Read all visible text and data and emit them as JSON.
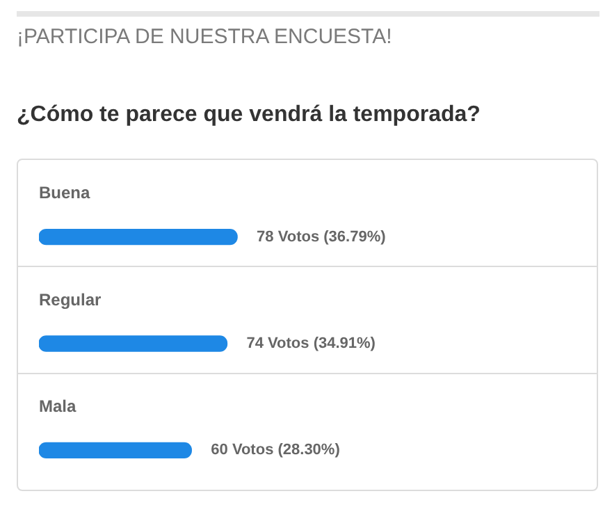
{
  "chart_data": {
    "type": "bar",
    "orientation": "horizontal",
    "title": "¡PARTICIPA DE NUESTRA ENCUESTA!",
    "subtitle": "¿Cómo te parece que vendrá la temporada?",
    "categories": [
      "Buena",
      "Regular",
      "Mala"
    ],
    "values": [
      78,
      74,
      60
    ],
    "value_labels": [
      "78 Votos (36.79%)",
      "74 Votos (34.91%)",
      "60 Votos (28.30%)"
    ],
    "color": "#1e88e5",
    "legend": false
  }
}
